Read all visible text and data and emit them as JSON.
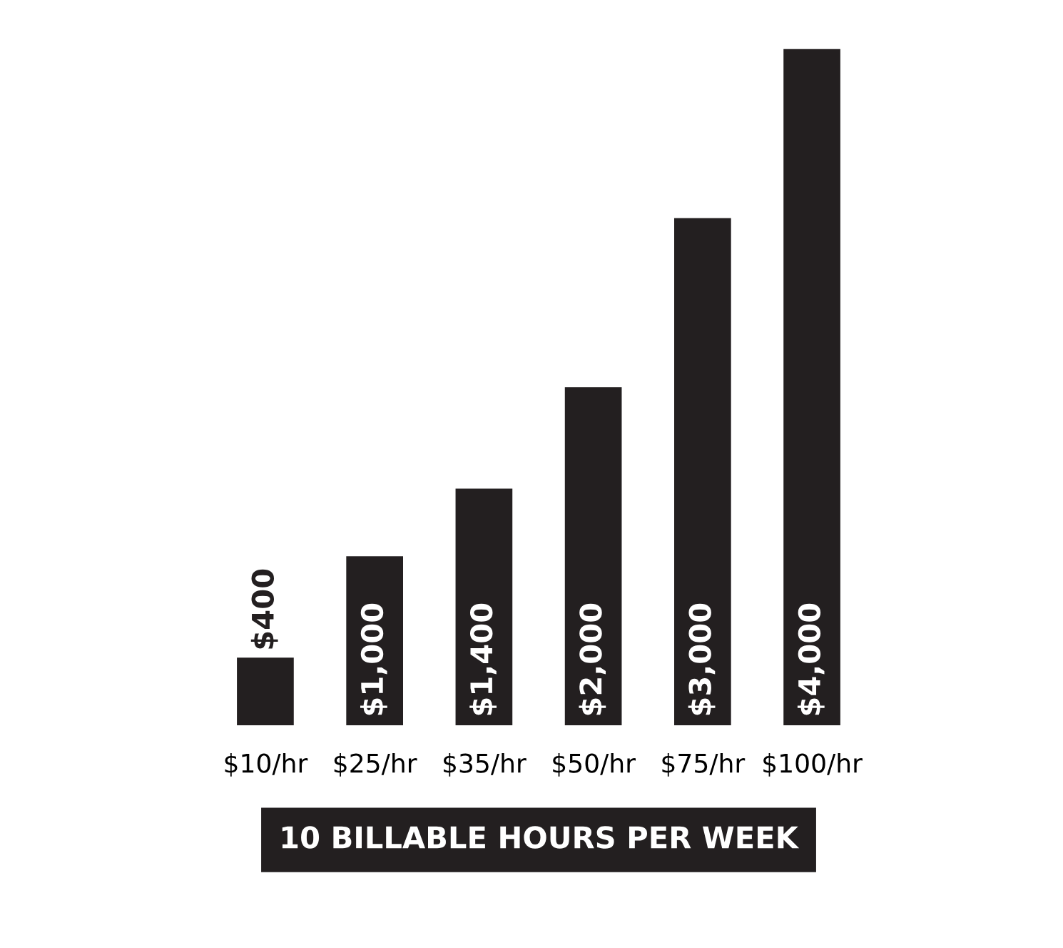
{
  "chart_data": {
    "type": "bar",
    "xlabel": "10 BILLABLE HOURS PER WEEK",
    "categories": [
      "$10/hr",
      "$25/hr",
      "$35/hr",
      "$50/hr",
      "$75/hr",
      "$100/hr"
    ],
    "values": [
      400,
      1000,
      1400,
      2000,
      3000,
      4000
    ],
    "value_labels": [
      "$400",
      "$1,000",
      "$1,400",
      "$2,000",
      "$3,000",
      "$4,000"
    ],
    "color": "#231f20",
    "grid": false,
    "legend": false
  }
}
